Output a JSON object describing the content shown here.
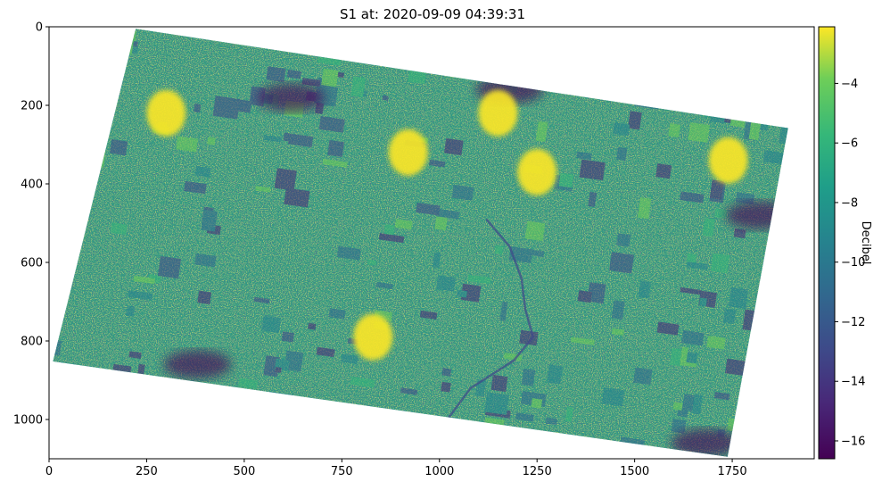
{
  "chart_data": {
    "type": "heatmap",
    "title": "S1 at: 2020-09-09 04:39:31",
    "xlabel": "",
    "ylabel": "",
    "xlim": [
      0,
      1960
    ],
    "ylim": [
      1100,
      0
    ],
    "xticks": [
      0,
      250,
      500,
      750,
      1000,
      1250,
      1500,
      1750
    ],
    "yticks": [
      0,
      200,
      400,
      600,
      800,
      1000
    ],
    "footprint": [
      [
        222,
        5
      ],
      [
        1893,
        258
      ],
      [
        1738,
        1095
      ],
      [
        10,
        852
      ]
    ],
    "colormap": "viridis",
    "colorbar": {
      "label": "Decibel",
      "vmin": -16.6,
      "vmax": -2.1,
      "ticks": [
        -4,
        -6,
        -8,
        -10,
        -12,
        -14,
        -16
      ]
    },
    "bright_regions": [
      {
        "x": 300,
        "y": 220
      },
      {
        "x": 920,
        "y": 320
      },
      {
        "x": 1250,
        "y": 370
      },
      {
        "x": 1150,
        "y": 220
      },
      {
        "x": 830,
        "y": 790
      },
      {
        "x": 1740,
        "y": 340
      }
    ],
    "dark_regions": [
      {
        "x": 1180,
        "y": 160
      },
      {
        "x": 620,
        "y": 180
      },
      {
        "x": 380,
        "y": 860
      },
      {
        "x": 1680,
        "y": 1060
      },
      {
        "x": 1820,
        "y": 480
      }
    ]
  }
}
